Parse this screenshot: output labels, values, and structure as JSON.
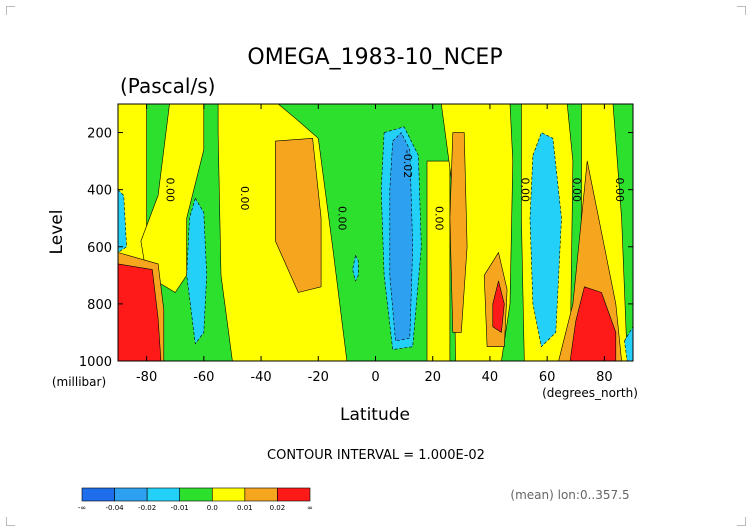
{
  "chart_data": {
    "type": "heatmap",
    "title": "OMEGA_1983-10_NCEP",
    "subtitle": "(Pascal/s)",
    "xlabel": "Latitude",
    "ylabel": "Level",
    "x_unit": "(degrees_north)",
    "y_unit": "(millibar)",
    "xlim": [
      -90,
      90
    ],
    "ylim": [
      1000,
      100
    ],
    "x_ticks": [
      -80,
      -60,
      -40,
      -20,
      0,
      20,
      40,
      60,
      80
    ],
    "y_ticks": [
      200,
      400,
      600,
      800,
      1000
    ],
    "contour_interval_text": "CONTOUR INTERVAL = 1.000E-02",
    "footnote": "(mean) lon:0..357.5",
    "colorbar": {
      "colors": [
        "#1e6eeb",
        "#2ea0f0",
        "#23d1f8",
        "#2ee02e",
        "#ffff00",
        "#f5a51e",
        "#ff1a1a"
      ],
      "labels": [
        "-∞",
        "-0.04",
        "-0.02",
        "-0.01",
        "0.0",
        "0.01",
        "0.02",
        "∞"
      ]
    },
    "contour_labels": [
      {
        "text": "0.00",
        "x": -73,
        "y": 400
      },
      {
        "text": "0.00",
        "x": -47,
        "y": 430
      },
      {
        "text": "0.00",
        "x": -13,
        "y": 500
      },
      {
        "text": "-0.02",
        "x": 10,
        "y": 310
      },
      {
        "text": "0.00",
        "x": 21,
        "y": 500
      },
      {
        "text": "0.00",
        "x": 51,
        "y": 400
      },
      {
        "text": "0.00",
        "x": 69,
        "y": 400
      },
      {
        "text": "0.00",
        "x": 84,
        "y": 400
      }
    ],
    "regions": [
      {
        "value": 0.0,
        "color": "#ffff00",
        "points": [
          [
            -90,
            100
          ],
          [
            -80,
            100
          ],
          [
            -80,
            1000
          ],
          [
            -90,
            1000
          ]
        ]
      },
      {
        "value": 0.0,
        "color": "#ffff00",
        "points": [
          [
            -72,
            100
          ],
          [
            -60,
            100
          ],
          [
            -60,
            260
          ],
          [
            -66,
            500
          ],
          [
            -66,
            700
          ],
          [
            -70,
            760
          ],
          [
            -80,
            700
          ],
          [
            -82,
            580
          ],
          [
            -76,
            420
          ]
        ]
      },
      {
        "value": 0.0,
        "color": "#ffff00",
        "points": [
          [
            -55,
            100
          ],
          [
            -34,
            100
          ],
          [
            -28,
            150
          ],
          [
            -20,
            220
          ],
          [
            -15,
            600
          ],
          [
            -10,
            1000
          ],
          [
            -50,
            1000
          ],
          [
            -54,
            700
          ],
          [
            -55,
            200
          ]
        ]
      },
      {
        "value": 0.0,
        "color": "#ffff00",
        "points": [
          [
            18,
            300
          ],
          [
            26,
            300
          ],
          [
            26,
            1000
          ],
          [
            18,
            1000
          ]
        ]
      },
      {
        "value": 0.0,
        "color": "#ffff00",
        "points": [
          [
            23,
            100
          ],
          [
            47,
            100
          ],
          [
            48,
            300
          ],
          [
            47,
            800
          ],
          [
            44,
            1000
          ],
          [
            28,
            1000
          ],
          [
            27,
            400
          ]
        ]
      },
      {
        "value": 0.0,
        "color": "#ffff00",
        "points": [
          [
            51,
            100
          ],
          [
            67,
            100
          ],
          [
            69,
            300
          ],
          [
            68,
            1000
          ],
          [
            52,
            1000
          ],
          [
            51,
            500
          ]
        ]
      },
      {
        "value": 0.0,
        "color": "#ffff00",
        "points": [
          [
            72,
            100
          ],
          [
            83,
            100
          ],
          [
            86,
            500
          ],
          [
            88,
            1000
          ],
          [
            70,
            1000
          ],
          [
            72,
            500
          ]
        ]
      },
      {
        "value": 0.01,
        "color": "#f5a51e",
        "points": [
          [
            -90,
            620
          ],
          [
            -76,
            660
          ],
          [
            -74,
            820
          ],
          [
            -74,
            1000
          ],
          [
            -90,
            1000
          ]
        ]
      },
      {
        "value": 0.01,
        "color": "#f5a51e",
        "points": [
          [
            -35,
            230
          ],
          [
            -22,
            220
          ],
          [
            -19,
            500
          ],
          [
            -19,
            740
          ],
          [
            -27,
            760
          ],
          [
            -35,
            580
          ]
        ]
      },
      {
        "value": 0.01,
        "color": "#f5a51e",
        "points": [
          [
            27,
            200
          ],
          [
            31,
            200
          ],
          [
            32,
            600
          ],
          [
            30,
            900
          ],
          [
            27,
            900
          ],
          [
            26,
            500
          ]
        ]
      },
      {
        "value": 0.01,
        "color": "#f5a51e",
        "points": [
          [
            38,
            700
          ],
          [
            43,
            620
          ],
          [
            46,
            750
          ],
          [
            45,
            950
          ],
          [
            39,
            950
          ]
        ]
      },
      {
        "value": 0.01,
        "color": "#f5a51e",
        "points": [
          [
            74,
            300
          ],
          [
            78,
            500
          ],
          [
            84,
            800
          ],
          [
            86,
            1000
          ],
          [
            64,
            1000
          ],
          [
            69,
            800
          ],
          [
            72,
            500
          ]
        ]
      },
      {
        "value": 0.02,
        "color": "#ff1a1a",
        "points": [
          [
            -90,
            660
          ],
          [
            -78,
            680
          ],
          [
            -76,
            850
          ],
          [
            -75,
            1000
          ],
          [
            -90,
            1000
          ]
        ]
      },
      {
        "value": 0.02,
        "color": "#ff1a1a",
        "points": [
          [
            41,
            800
          ],
          [
            43,
            720
          ],
          [
            45,
            800
          ],
          [
            44,
            900
          ],
          [
            41,
            880
          ]
        ]
      },
      {
        "value": 0.02,
        "color": "#ff1a1a",
        "points": [
          [
            73,
            740
          ],
          [
            79,
            760
          ],
          [
            84,
            900
          ],
          [
            84,
            1000
          ],
          [
            68,
            1000
          ],
          [
            70,
            860
          ]
        ]
      },
      {
        "value": -0.01,
        "color": "#23d1f8",
        "points": [
          [
            -90,
            400
          ],
          [
            -88,
            420
          ],
          [
            -87,
            600
          ],
          [
            -90,
            620
          ]
        ]
      },
      {
        "value": -0.01,
        "color": "#23d1f8",
        "points": [
          [
            -63,
            430
          ],
          [
            -60,
            480
          ],
          [
            -59,
            700
          ],
          [
            -60,
            900
          ],
          [
            -63,
            940
          ],
          [
            -66,
            700
          ],
          [
            -65,
            500
          ]
        ]
      },
      {
        "value": -0.01,
        "color": "#23d1f8",
        "points": [
          [
            3,
            200
          ],
          [
            10,
            180
          ],
          [
            15,
            280
          ],
          [
            16,
            600
          ],
          [
            13,
            950
          ],
          [
            6,
            960
          ],
          [
            3,
            700
          ],
          [
            2,
            400
          ]
        ]
      },
      {
        "value": -0.01,
        "color": "#23d1f8",
        "points": [
          [
            -7,
            630
          ],
          [
            -6,
            650
          ],
          [
            -6,
            700
          ],
          [
            -7,
            720
          ],
          [
            -8,
            680
          ]
        ]
      },
      {
        "value": -0.01,
        "color": "#23d1f8",
        "points": [
          [
            55,
            280
          ],
          [
            58,
            200
          ],
          [
            62,
            220
          ],
          [
            65,
            500
          ],
          [
            63,
            900
          ],
          [
            58,
            950
          ],
          [
            55,
            800
          ],
          [
            54,
            500
          ]
        ]
      },
      {
        "value": -0.01,
        "color": "#23d1f8",
        "points": [
          [
            87,
            930
          ],
          [
            90,
            880
          ],
          [
            90,
            1000
          ],
          [
            88,
            1000
          ]
        ]
      },
      {
        "value": -0.02,
        "color": "#2ea0f0",
        "points": [
          [
            6,
            230
          ],
          [
            9,
            200
          ],
          [
            12,
            260
          ],
          [
            13,
            600
          ],
          [
            12,
            920
          ],
          [
            7,
            930
          ],
          [
            5,
            700
          ],
          [
            5,
            400
          ]
        ]
      }
    ]
  }
}
